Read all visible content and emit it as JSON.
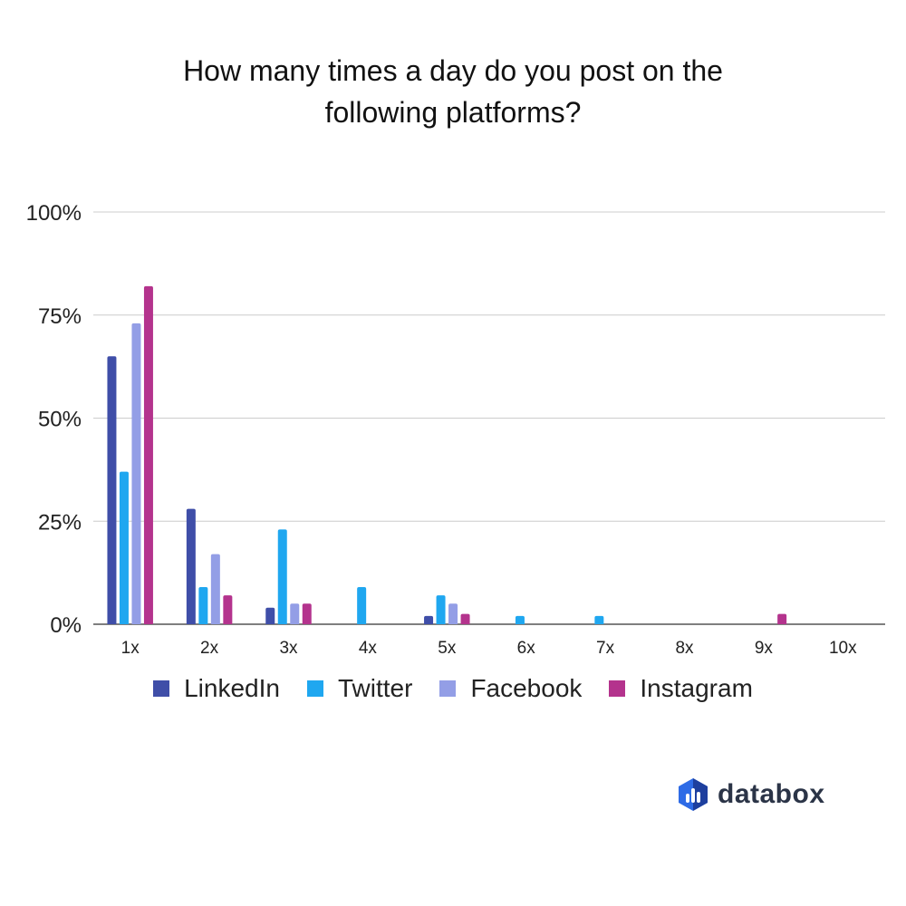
{
  "chart_data": {
    "type": "bar",
    "title": "How many times a day do you post on the following platforms?",
    "title_lines": [
      "How many times a day do you post on the",
      "following platforms?"
    ],
    "categories": [
      "1x",
      "2x",
      "3x",
      "4x",
      "5x",
      "6x",
      "7x",
      "8x",
      "9x",
      "10x"
    ],
    "y_ticks": [
      "0%",
      "25%",
      "50%",
      "75%",
      "100%"
    ],
    "ylim": [
      0,
      100
    ],
    "grid": true,
    "legend_position": "bottom",
    "series": [
      {
        "name": "LinkedIn",
        "color": "#3f4ea8",
        "values": [
          65,
          28,
          4,
          0,
          2,
          0,
          0,
          0,
          0,
          0
        ]
      },
      {
        "name": "Twitter",
        "color": "#1fa7f0",
        "values": [
          37,
          9,
          23,
          9,
          7,
          2,
          2,
          0,
          0,
          0
        ]
      },
      {
        "name": "Facebook",
        "color": "#939ee6",
        "values": [
          73,
          17,
          5,
          0,
          5,
          0,
          0,
          0,
          0,
          0
        ]
      },
      {
        "name": "Instagram",
        "color": "#b4338d",
        "values": [
          82,
          7,
          5,
          0,
          2.5,
          0,
          0,
          0,
          2.5,
          0
        ]
      }
    ]
  },
  "brand": {
    "name": "databox",
    "logo_icon": "databox-logo-icon",
    "colors": [
      "#2e6be6",
      "#1e3f9e"
    ]
  }
}
